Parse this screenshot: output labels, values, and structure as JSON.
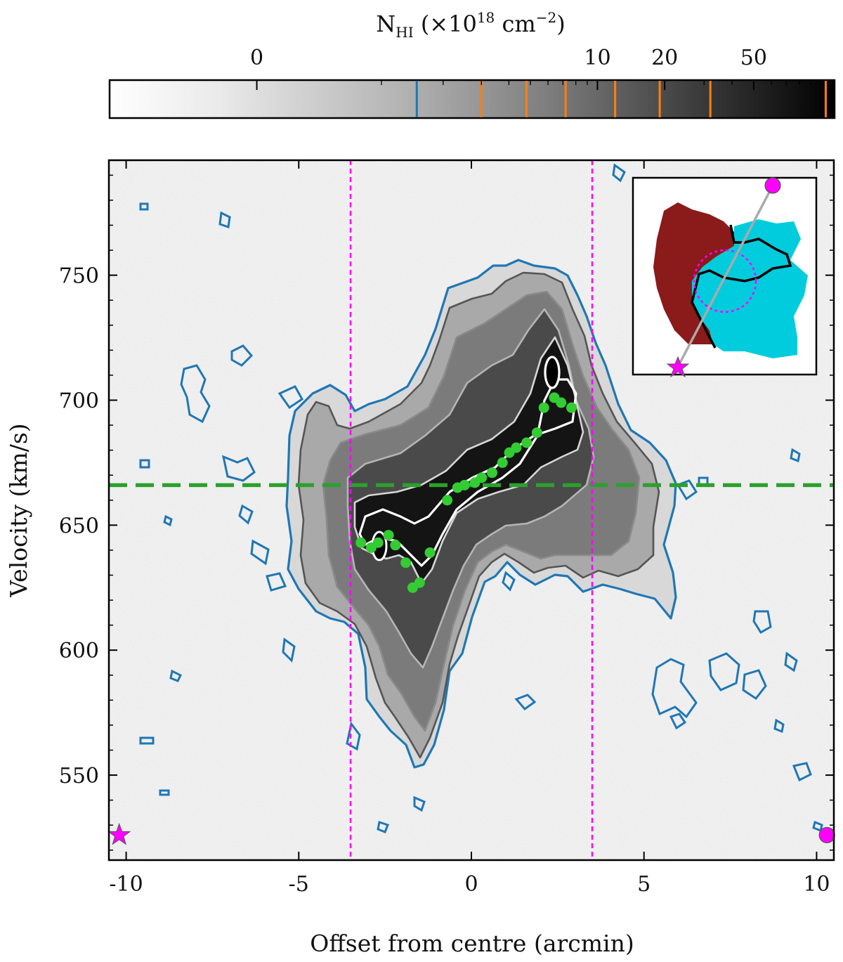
{
  "chart_data": {
    "type": "heatmap",
    "title": "",
    "xlabel": "Offset from centre (arcmin)",
    "ylabel": "Velocity (km/s)",
    "xlim": [
      -10.5,
      10.5
    ],
    "ylim": [
      516,
      796
    ],
    "xticks": [
      -10,
      -5,
      0,
      5,
      10
    ],
    "xtick_labels": [
      "-10",
      "-5",
      "0",
      "5",
      "10"
    ],
    "yticks": [
      550,
      600,
      650,
      700,
      750
    ],
    "ytick_labels": [
      "550",
      "600",
      "650",
      "700",
      "750"
    ],
    "colorbar": {
      "label_main": "N",
      "label_sub": "HI",
      "label_unit": "(×10",
      "label_exp": "18",
      "label_cm": " cm",
      "label_cm_exp": "−2",
      "label_close": ")",
      "tick_labels": [
        {
          "label": "0",
          "value": 0
        },
        {
          "label": "10",
          "value": 10
        },
        {
          "label": "20",
          "value": 20
        },
        {
          "label": "50",
          "value": 50
        }
      ],
      "colormap": "Greys",
      "contour_marks": [
        {
          "value": 1.5,
          "color": "#1f77b4"
        },
        {
          "value": 3,
          "color": "#ff7f0e"
        },
        {
          "value": 4.8,
          "color": "#ff7f0e"
        },
        {
          "value": 7.2,
          "color": "#ff7f0e"
        },
        {
          "value": 12,
          "color": "#ff7f0e"
        },
        {
          "value": 19,
          "color": "#ff7f0e"
        },
        {
          "value": 32,
          "color": "#ff7f0e"
        },
        {
          "value": 105,
          "color": "#ff7f0e"
        }
      ]
    },
    "systemic_velocity": 666,
    "systemic_line_color": "#2ca02c",
    "aperture_lines_x": [
      -3.5,
      3.5
    ],
    "aperture_line_color": "#ff00ff",
    "rotation_points_color": "#33cc33",
    "rotation_points": [
      {
        "x": -3.2,
        "y": 643
      },
      {
        "x": -2.9,
        "y": 641
      },
      {
        "x": -2.7,
        "y": 643
      },
      {
        "x": -2.4,
        "y": 646
      },
      {
        "x": -2.2,
        "y": 642
      },
      {
        "x": -1.9,
        "y": 635
      },
      {
        "x": -1.7,
        "y": 625
      },
      {
        "x": -1.5,
        "y": 627
      },
      {
        "x": -1.2,
        "y": 639
      },
      {
        "x": -0.7,
        "y": 660
      },
      {
        "x": -0.4,
        "y": 665
      },
      {
        "x": -0.2,
        "y": 666
      },
      {
        "x": 0.1,
        "y": 667
      },
      {
        "x": 0.3,
        "y": 669
      },
      {
        "x": 0.6,
        "y": 671
      },
      {
        "x": 0.9,
        "y": 675
      },
      {
        "x": 1.1,
        "y": 679
      },
      {
        "x": 1.3,
        "y": 681
      },
      {
        "x": 1.6,
        "y": 683
      },
      {
        "x": 1.9,
        "y": 687
      },
      {
        "x": 2.1,
        "y": 697
      },
      {
        "x": 2.4,
        "y": 701
      },
      {
        "x": 2.6,
        "y": 699
      },
      {
        "x": 2.9,
        "y": 697
      }
    ],
    "endpoint_markers": [
      {
        "shape": "star",
        "x": -10.2,
        "y": 526,
        "color": "#ff00ff"
      },
      {
        "shape": "circle",
        "x": 10.3,
        "y": 526,
        "color": "#ff00ff"
      }
    ],
    "inset": {
      "description_colors": {
        "receding": "#8b1a1a",
        "approaching": "#00ccdd"
      },
      "slit_color": "#aaaaaa",
      "aperture_color": "#ff00ff"
    }
  }
}
